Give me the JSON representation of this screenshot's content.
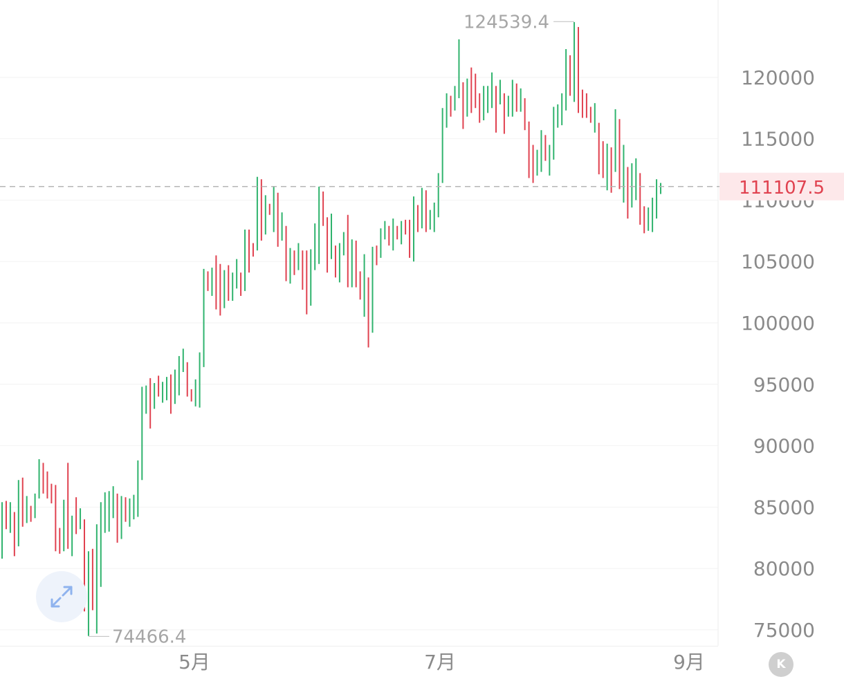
{
  "chart_data": {
    "type": "ohlc",
    "y_axis": {
      "ticks": [
        "120000",
        "115000",
        "110000",
        "105000",
        "100000",
        "95000",
        "90000",
        "85000",
        "80000",
        "75000"
      ],
      "ylim": [
        73700,
        126300
      ],
      "position": "right"
    },
    "x_axis": {
      "ticks": [
        "5月",
        "7月",
        "9月"
      ]
    },
    "current_price": {
      "label": "111107.5",
      "value": 111107.5,
      "line": "dashed"
    },
    "high_marker": {
      "label": "124539.4",
      "value": 124539.4
    },
    "low_marker": {
      "label": "74466.4",
      "value": 74466.4
    },
    "grid": "horizontal",
    "colors": {
      "up": "#2fb36d",
      "down": "#e0414f",
      "grid": "#f2f2f2",
      "axis_text": "#8a8a8a"
    },
    "bars": [
      [
        82800,
        85400,
        80800,
        84600
      ],
      [
        84600,
        85500,
        83200,
        83900
      ],
      [
        83900,
        85400,
        82900,
        84300
      ],
      [
        84300,
        84600,
        81000,
        82200
      ],
      [
        82200,
        87200,
        81800,
        86800
      ],
      [
        86800,
        87400,
        83400,
        84900
      ],
      [
        84900,
        85900,
        83700,
        85300
      ],
      [
        85300,
        85100,
        83800,
        84100
      ],
      [
        84100,
        86100,
        84100,
        85900
      ],
      [
        85900,
        88900,
        85700,
        88300
      ],
      [
        88300,
        88600,
        86100,
        86800
      ],
      [
        86800,
        87900,
        85700,
        86000
      ],
      [
        86000,
        86900,
        85300,
        85500
      ],
      [
        85500,
        86800,
        81400,
        82600
      ],
      [
        82600,
        83300,
        81200,
        81800
      ],
      [
        81800,
        85600,
        81400,
        85200
      ],
      [
        85200,
        88600,
        81600,
        82200
      ],
      [
        82200,
        84300,
        81000,
        84000
      ],
      [
        84000,
        85800,
        82800,
        83400
      ],
      [
        83400,
        84900,
        83200,
        83400
      ],
      [
        83400,
        84000,
        76500,
        77900
      ],
      [
        77900,
        81400,
        74500,
        79200
      ],
      [
        79200,
        81600,
        76600,
        78700
      ],
      [
        78700,
        83600,
        74700,
        83400
      ],
      [
        83400,
        85400,
        78500,
        84000
      ],
      [
        84000,
        86200,
        82900,
        84600
      ],
      [
        84600,
        86300,
        83000,
        84600
      ],
      [
        84600,
        86700,
        84100,
        85400
      ],
      [
        85400,
        86100,
        82100,
        84000
      ],
      [
        84000,
        85900,
        82400,
        85500
      ],
      [
        85500,
        85800,
        83800,
        84700
      ],
      [
        84700,
        85700,
        83400,
        84900
      ],
      [
        84900,
        86000,
        84000,
        85400
      ],
      [
        85400,
        88800,
        84200,
        87900
      ],
      [
        87900,
        94800,
        87200,
        94300
      ],
      [
        94300,
        94900,
        92600,
        94400
      ],
      [
        94400,
        95500,
        91400,
        92800
      ],
      [
        92800,
        95100,
        93000,
        94600
      ],
      [
        94600,
        95700,
        94000,
        94300
      ],
      [
        94300,
        95200,
        93500,
        94700
      ],
      [
        94700,
        95600,
        93700,
        95000
      ],
      [
        95000,
        95800,
        92600,
        94000
      ],
      [
        94000,
        96200,
        93400,
        94300
      ],
      [
        94300,
        97300,
        94100,
        96700
      ],
      [
        96700,
        97900,
        96000,
        97000
      ],
      [
        97000,
        96800,
        94000,
        95500
      ],
      [
        95500,
        94600,
        93600,
        93800
      ],
      [
        93800,
        95400,
        93200,
        94800
      ],
      [
        94800,
        97600,
        93100,
        96500
      ],
      [
        96500,
        104400,
        96400,
        103900
      ],
      [
        103900,
        104200,
        102600,
        103100
      ],
      [
        103100,
        104500,
        102200,
        103700
      ],
      [
        103700,
        105500,
        101100,
        102800
      ],
      [
        102800,
        104800,
        100600,
        102100
      ],
      [
        102100,
        104300,
        101200,
        104000
      ],
      [
        104000,
        104700,
        101800,
        102500
      ],
      [
        102500,
        104100,
        101800,
        103500
      ],
      [
        103500,
        105200,
        102800,
        104700
      ],
      [
        104700,
        104100,
        102200,
        102600
      ],
      [
        102600,
        107600,
        102600,
        107100
      ],
      [
        107100,
        107600,
        104100,
        106200
      ],
      [
        106200,
        106500,
        105400,
        105800
      ],
      [
        105800,
        111900,
        105900,
        111700
      ],
      [
        111700,
        111700,
        106700,
        108900
      ],
      [
        108900,
        110400,
        107200,
        109900
      ],
      [
        109900,
        109700,
        108800,
        109100
      ],
      [
        109100,
        111100,
        107400,
        110100
      ],
      [
        110100,
        110600,
        106200,
        107100
      ],
      [
        107100,
        109000,
        106700,
        108400
      ],
      [
        108400,
        107900,
        103400,
        104600
      ],
      [
        104600,
        106100,
        103200,
        105300
      ],
      [
        105300,
        105900,
        103900,
        104800
      ],
      [
        104800,
        106500,
        104300,
        105300
      ],
      [
        105300,
        105900,
        102700,
        104000
      ],
      [
        104000,
        105900,
        100700,
        102600
      ],
      [
        102600,
        106000,
        101400,
        105000
      ],
      [
        105000,
        108100,
        104300,
        106800
      ],
      [
        106800,
        111100,
        104800,
        110000
      ],
      [
        110000,
        110700,
        107900,
        109300
      ],
      [
        109300,
        108600,
        104100,
        105300
      ],
      [
        105300,
        108900,
        105200,
        106000
      ],
      [
        106000,
        106300,
        103700,
        104200
      ],
      [
        104200,
        106500,
        103300,
        105700
      ],
      [
        105700,
        107400,
        105500,
        107100
      ],
      [
        107100,
        108800,
        102900,
        103800
      ],
      [
        103800,
        106800,
        102900,
        106100
      ],
      [
        106100,
        106700,
        102900,
        103000
      ],
      [
        103000,
        104200,
        101900,
        102600
      ],
      [
        102600,
        105600,
        100500,
        105200
      ],
      [
        105200,
        103700,
        98000,
        100000
      ],
      [
        100000,
        106200,
        99200,
        105700
      ],
      [
        105700,
        106300,
        104700,
        105600
      ],
      [
        105600,
        107700,
        105300,
        107300
      ],
      [
        107300,
        108300,
        106800,
        107500
      ],
      [
        107500,
        107900,
        106300,
        106400
      ],
      [
        106400,
        108500,
        105900,
        107600
      ],
      [
        107600,
        107900,
        106800,
        107300
      ],
      [
        107300,
        108300,
        106400,
        107900
      ],
      [
        107900,
        108400,
        107200,
        107600
      ],
      [
        107600,
        108400,
        105300,
        106300
      ],
      [
        106300,
        110300,
        105000,
        110000
      ],
      [
        110000,
        109600,
        107400,
        109600
      ],
      [
        109600,
        111000,
        107700,
        110000
      ],
      [
        110000,
        110800,
        107400,
        107600
      ],
      [
        107600,
        109200,
        107600,
        108400
      ],
      [
        108400,
        109800,
        107400,
        109400
      ],
      [
        109400,
        112200,
        108600,
        111200
      ],
      [
        111200,
        117500,
        111400,
        117200
      ],
      [
        117200,
        118700,
        115900,
        117700
      ],
      [
        117700,
        118500,
        116800,
        117600
      ],
      [
        117600,
        119300,
        117300,
        119000
      ],
      [
        119000,
        123100,
        118300,
        119800
      ],
      [
        119800,
        119600,
        115800,
        117400
      ],
      [
        117400,
        119900,
        116800,
        119300
      ],
      [
        119300,
        120800,
        117100,
        118500
      ],
      [
        118500,
        120300,
        117500,
        117600
      ],
      [
        117600,
        118700,
        116300,
        116800
      ],
      [
        116800,
        119300,
        116500,
        118100
      ],
      [
        118100,
        119300,
        117100,
        118300
      ],
      [
        118300,
        120400,
        117500,
        119800
      ],
      [
        119800,
        119300,
        115500,
        117800
      ],
      [
        117800,
        119800,
        117800,
        118100
      ],
      [
        118100,
        118700,
        115400,
        117200
      ],
      [
        117200,
        118500,
        116800,
        117900
      ],
      [
        117900,
        119800,
        116800,
        118900
      ],
      [
        118900,
        119500,
        117200,
        117700
      ],
      [
        117700,
        119100,
        117200,
        118500
      ],
      [
        118500,
        118300,
        115700,
        116100
      ],
      [
        116100,
        116400,
        111800,
        113300
      ],
      [
        113300,
        114500,
        111400,
        112500
      ],
      [
        112500,
        114100,
        112000,
        114100
      ],
      [
        114100,
        115700,
        112300,
        114500
      ],
      [
        114500,
        115300,
        113200,
        113800
      ],
      [
        113800,
        114500,
        112000,
        114400
      ],
      [
        114400,
        117600,
        113300,
        116300
      ],
      [
        116300,
        117800,
        115900,
        117100
      ],
      [
        117100,
        118700,
        116100,
        118200
      ],
      [
        118200,
        122300,
        117300,
        121400
      ],
      [
        121400,
        121800,
        118500,
        119400
      ],
      [
        119400,
        124500,
        118000,
        123700
      ],
      [
        123700,
        124100,
        117100,
        118100
      ],
      [
        118100,
        119000,
        116700,
        117500
      ],
      [
        117500,
        118700,
        116700,
        117300
      ],
      [
        117300,
        117600,
        116300,
        116800
      ],
      [
        116800,
        117900,
        115500,
        117400
      ],
      [
        117400,
        116300,
        112100,
        113600
      ],
      [
        113600,
        114800,
        111800,
        112400
      ],
      [
        112400,
        114600,
        110800,
        114500
      ],
      [
        114500,
        114300,
        110600,
        112600
      ],
      [
        112600,
        117400,
        112300,
        116700
      ],
      [
        116700,
        116600,
        110900,
        111800
      ],
      [
        111800,
        114500,
        109800,
        113300
      ],
      [
        113300,
        112700,
        108500,
        111300
      ],
      [
        111300,
        113000,
        109400,
        111800
      ],
      [
        111800,
        113400,
        110000,
        112500
      ],
      [
        112500,
        112200,
        108000,
        108600
      ],
      [
        108600,
        109500,
        107300,
        107800
      ],
      [
        107800,
        109400,
        107500,
        109000
      ],
      [
        109000,
        110200,
        107400,
        109900
      ],
      [
        109900,
        111700,
        108500,
        110900
      ],
      [
        110900,
        111400,
        110500,
        111100
      ]
    ]
  },
  "ui": {
    "expand_icon": "expand-arrows-icon",
    "k_button": {
      "icon": "k-circle-icon",
      "label": "K"
    }
  }
}
